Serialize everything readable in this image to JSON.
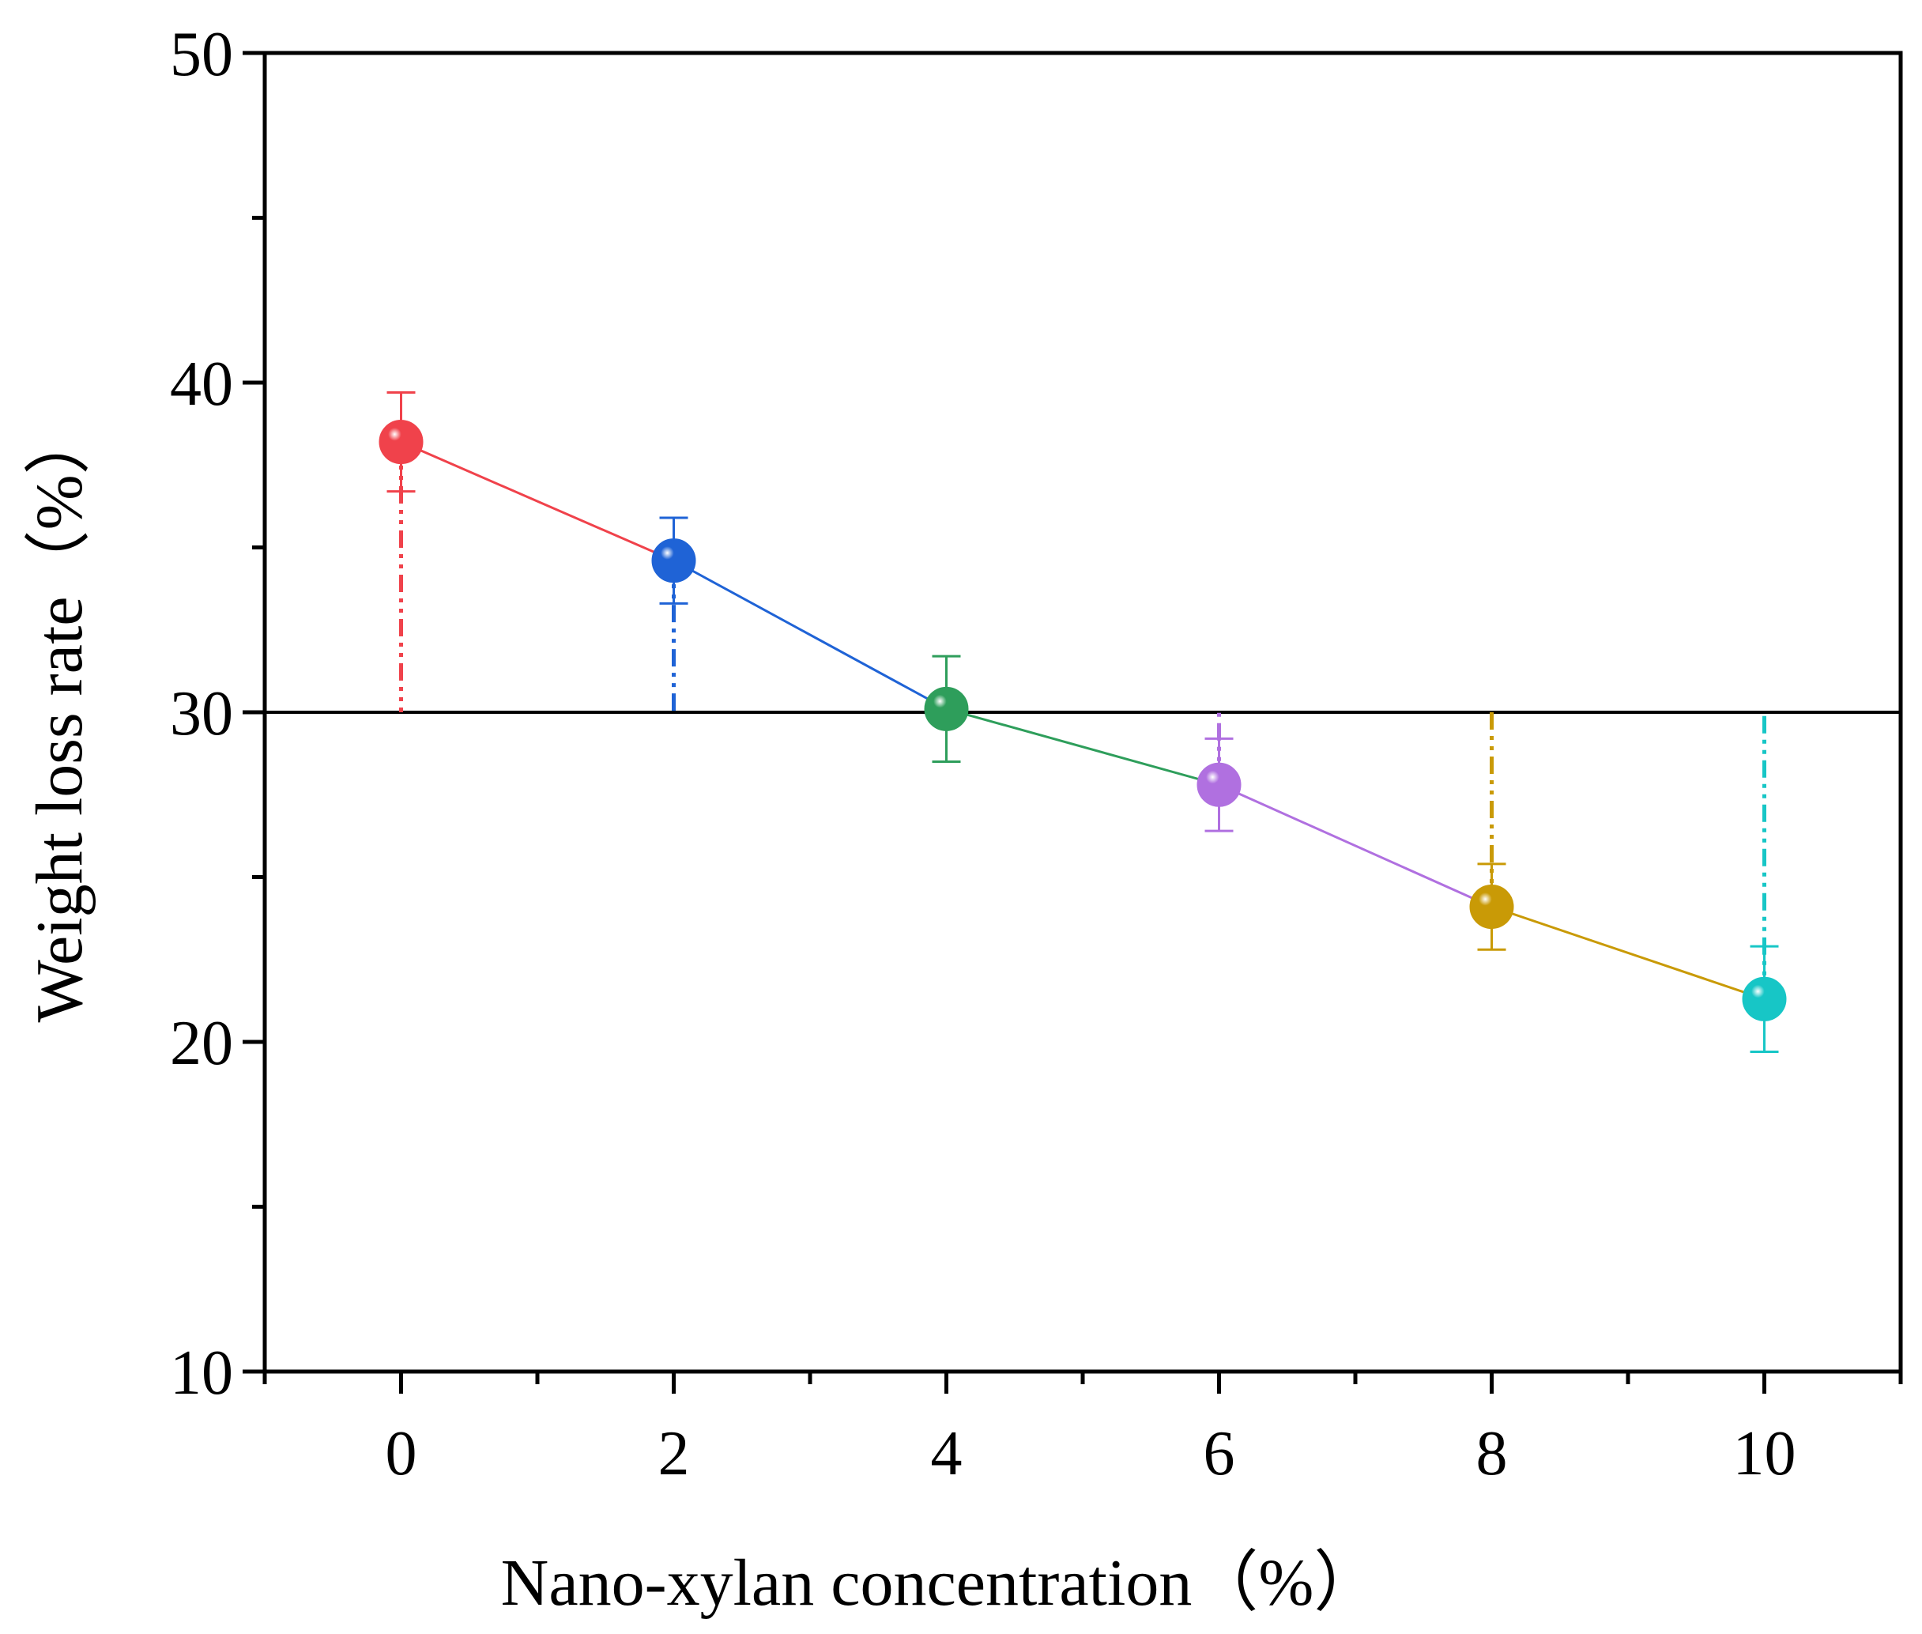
{
  "chart_data": {
    "type": "scatter",
    "title": "",
    "xlabel": "Nano-xylan concentration（%）",
    "ylabel": "Weight loss rate（%）",
    "xlim": [
      -1,
      11
    ],
    "ylim": [
      10,
      50
    ],
    "x_ticks": [
      0,
      2,
      4,
      6,
      8,
      10
    ],
    "y_ticks": [
      10,
      20,
      30,
      40,
      50
    ],
    "x_tick_labels": [
      "0",
      "2",
      "4",
      "6",
      "8",
      "10"
    ],
    "y_tick_labels": [
      "10",
      "20",
      "30",
      "40",
      "50"
    ],
    "reference_line": 30,
    "series": [
      {
        "name": "0%",
        "x": 0,
        "y": 38.2,
        "err_low": 1.5,
        "err_high": 1.5,
        "color": "#f0424b"
      },
      {
        "name": "2%",
        "x": 2,
        "y": 34.6,
        "err_low": 1.3,
        "err_high": 1.3,
        "color": "#1f63d6"
      },
      {
        "name": "4%",
        "x": 4,
        "y": 30.1,
        "err_low": 1.6,
        "err_high": 1.6,
        "color": "#2e9e5b"
      },
      {
        "name": "6%",
        "x": 6,
        "y": 27.8,
        "err_low": 1.4,
        "err_high": 1.4,
        "color": "#b070e0"
      },
      {
        "name": "8%",
        "x": 8,
        "y": 24.1,
        "err_low": 1.3,
        "err_high": 1.3,
        "color": "#c99a06"
      },
      {
        "name": "10%",
        "x": 10,
        "y": 21.3,
        "err_low": 1.6,
        "err_high": 1.6,
        "color": "#17c6c6"
      }
    ]
  }
}
